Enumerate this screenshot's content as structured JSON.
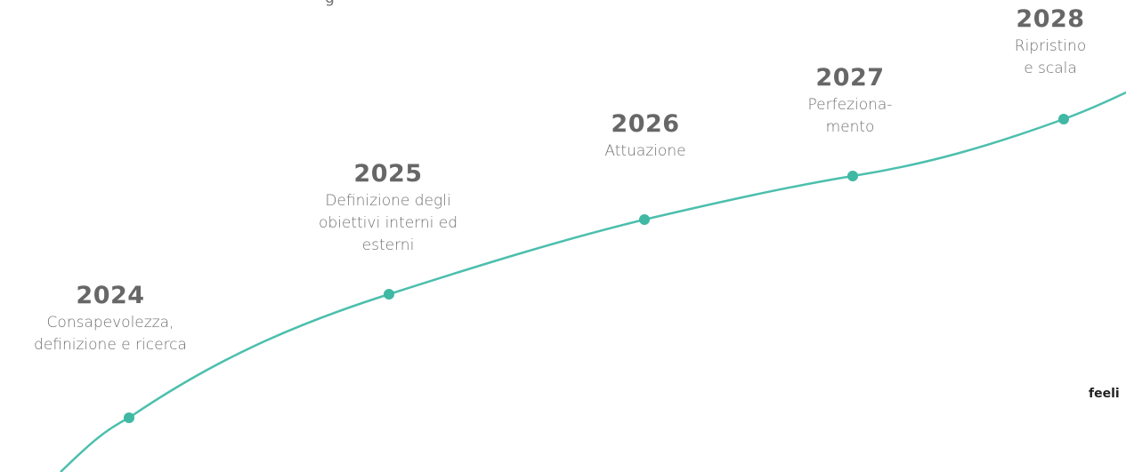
{
  "clipped_top_text": "g",
  "milestones": [
    {
      "year": "2024",
      "desc": "Consapevolezza,\ndefinizione e ricerca"
    },
    {
      "year": "2025",
      "desc": "Definizione degli\nobiettivi interni ed\nesterni"
    },
    {
      "year": "2026",
      "desc": "Attuazione"
    },
    {
      "year": "2027",
      "desc": "Perfeziona-\nmento"
    },
    {
      "year": "2028",
      "desc": "Ripristino\ne scala"
    }
  ],
  "brand": "feeli",
  "colors": {
    "line": "#4cbfad",
    "dot": "#3fb8a4",
    "year_text": "#676767",
    "desc_text": "#707070"
  }
}
